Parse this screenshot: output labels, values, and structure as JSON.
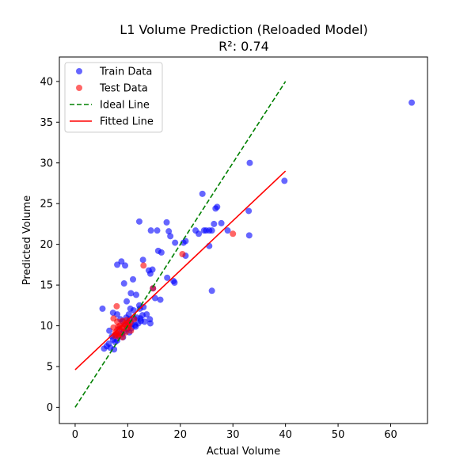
{
  "chart_data": {
    "type": "scatter",
    "title": "L1 Volume Prediction (Reloaded Model)",
    "subtitle": "R²: 0.74",
    "xlabel": "Actual Volume",
    "ylabel": "Predicted Volume",
    "xlim": [
      -3,
      67
    ],
    "ylim": [
      -2,
      43
    ],
    "xticks": [
      0,
      10,
      20,
      30,
      40,
      50,
      60
    ],
    "yticks": [
      0,
      5,
      10,
      15,
      20,
      25,
      30,
      35,
      40
    ],
    "legend_position": "top-left",
    "colors": {
      "train": "#0000ff",
      "test": "#ff0000",
      "ideal": "#008000",
      "fitted": "#ff0000"
    },
    "series": [
      {
        "name": "Train Data",
        "kind": "scatter",
        "points": [
          [
            64.0,
            37.4
          ],
          [
            33.2,
            30.0
          ],
          [
            39.8,
            27.8
          ],
          [
            24.2,
            26.2
          ],
          [
            33.0,
            24.1
          ],
          [
            33.1,
            21.1
          ],
          [
            27.0,
            24.6
          ],
          [
            26.7,
            24.4
          ],
          [
            26.4,
            22.5
          ],
          [
            27.8,
            22.6
          ],
          [
            29.0,
            21.7
          ],
          [
            25.5,
            21.7
          ],
          [
            24.5,
            21.7
          ],
          [
            24.9,
            21.7
          ],
          [
            23.5,
            21.3
          ],
          [
            22.9,
            21.7
          ],
          [
            26.0,
            21.7
          ],
          [
            25.5,
            19.8
          ],
          [
            26.0,
            14.3
          ],
          [
            12.2,
            22.8
          ],
          [
            17.4,
            22.7
          ],
          [
            14.4,
            21.7
          ],
          [
            15.6,
            21.7
          ],
          [
            17.8,
            21.6
          ],
          [
            18.1,
            21.0
          ],
          [
            19.0,
            20.2
          ],
          [
            20.6,
            20.2
          ],
          [
            21.0,
            20.4
          ],
          [
            15.8,
            19.2
          ],
          [
            16.4,
            19.0
          ],
          [
            21.0,
            18.6
          ],
          [
            12.9,
            18.1
          ],
          [
            8.0,
            17.5
          ],
          [
            8.8,
            17.9
          ],
          [
            9.5,
            17.4
          ],
          [
            14.0,
            16.8
          ],
          [
            14.3,
            16.4
          ],
          [
            14.7,
            16.9
          ],
          [
            11.0,
            15.7
          ],
          [
            9.3,
            15.2
          ],
          [
            17.5,
            15.9
          ],
          [
            18.7,
            15.5
          ],
          [
            18.9,
            15.3
          ],
          [
            14.8,
            14.6
          ],
          [
            10.6,
            14.0
          ],
          [
            11.6,
            13.8
          ],
          [
            15.2,
            13.4
          ],
          [
            16.2,
            13.2
          ],
          [
            5.2,
            12.1
          ],
          [
            9.8,
            13.0
          ],
          [
            12.2,
            12.5
          ],
          [
            13.0,
            12.3
          ],
          [
            10.5,
            12.1
          ],
          [
            11.1,
            11.9
          ],
          [
            7.2,
            11.6
          ],
          [
            8.0,
            11.4
          ],
          [
            12.8,
            11.3
          ],
          [
            14.2,
            10.8
          ],
          [
            14.3,
            10.3
          ],
          [
            13.6,
            11.4
          ],
          [
            11.8,
            11.0
          ],
          [
            12.5,
            10.6
          ],
          [
            11.4,
            10.1
          ],
          [
            10.7,
            9.7
          ],
          [
            10.3,
            9.2
          ],
          [
            9.3,
            9.3
          ],
          [
            8.4,
            9.6
          ],
          [
            6.5,
            9.4
          ],
          [
            7.0,
            8.7
          ],
          [
            7.2,
            8.3
          ],
          [
            7.6,
            8.0
          ],
          [
            6.4,
            7.8
          ],
          [
            6.0,
            7.5
          ],
          [
            5.5,
            7.2
          ],
          [
            6.7,
            7.3
          ],
          [
            7.4,
            7.1
          ],
          [
            8.2,
            8.8
          ],
          [
            8.9,
            9.0
          ],
          [
            9.6,
            10.1
          ],
          [
            10.0,
            10.4
          ],
          [
            10.4,
            10.8
          ],
          [
            9.0,
            10.5
          ],
          [
            9.7,
            11.0
          ],
          [
            8.6,
            10.8
          ],
          [
            11.2,
            10.9
          ],
          [
            12.0,
            10.3
          ],
          [
            12.4,
            10.9
          ],
          [
            13.2,
            10.5
          ],
          [
            8.0,
            8.2
          ],
          [
            7.7,
            8.9
          ],
          [
            9.1,
            8.6
          ],
          [
            10.8,
            10.2
          ],
          [
            9.9,
            9.6
          ],
          [
            11.5,
            9.9
          ],
          [
            12.3,
            12.1
          ],
          [
            10.2,
            11.4
          ]
        ]
      },
      {
        "name": "Test Data",
        "kind": "scatter",
        "points": [
          [
            30.0,
            21.3
          ],
          [
            20.4,
            18.8
          ],
          [
            13.0,
            17.4
          ],
          [
            14.8,
            14.6
          ],
          [
            7.9,
            12.4
          ],
          [
            7.3,
            10.9
          ],
          [
            8.0,
            10.5
          ],
          [
            9.0,
            10.6
          ],
          [
            9.8,
            10.7
          ],
          [
            10.5,
            10.4
          ],
          [
            11.2,
            10.8
          ],
          [
            8.5,
            10.0
          ],
          [
            9.2,
            9.7
          ],
          [
            8.0,
            9.5
          ],
          [
            7.7,
            9.2
          ],
          [
            9.6,
            9.2
          ],
          [
            10.0,
            9.8
          ],
          [
            8.4,
            8.9
          ],
          [
            9.0,
            8.6
          ],
          [
            8.2,
            9.9
          ],
          [
            7.5,
            8.8
          ],
          [
            10.6,
            9.4
          ],
          [
            9.4,
            10.2
          ],
          [
            8.8,
            9.3
          ],
          [
            8.2,
            8.7
          ],
          [
            10.3,
            10.0
          ],
          [
            7.3,
            9.8
          ],
          [
            9.9,
            10.1
          ],
          [
            8.9,
            9.8
          ],
          [
            7.8,
            9.0
          ]
        ]
      },
      {
        "name": "Ideal Line",
        "kind": "line",
        "style": "dashed",
        "points": [
          [
            0,
            0
          ],
          [
            40,
            40
          ]
        ]
      },
      {
        "name": "Fitted Line",
        "kind": "line",
        "style": "solid",
        "points": [
          [
            0,
            4.6
          ],
          [
            40,
            29.0
          ]
        ]
      }
    ]
  }
}
